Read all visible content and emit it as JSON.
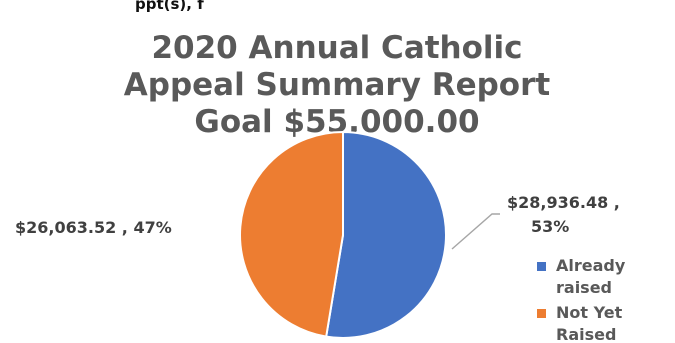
{
  "top_fragment": "ppt(s), f",
  "chart_data": {
    "type": "pie",
    "title_lines": [
      "2020 Annual Catholic",
      "Appeal  Summary Report",
      "Goal $55,000.00"
    ],
    "slices": [
      {
        "name": "Already raised",
        "value": 28936.48,
        "percent": 53,
        "label_line1": "$28,936.48 ,",
        "label_line2": "53%",
        "legend_line1": "Already",
        "legend_line2": "raised",
        "color": "#4472C4"
      },
      {
        "name": "Not Yet Raised",
        "value": 26063.52,
        "percent": 47,
        "label_line1": "$26,063.52 , 47%",
        "legend_line1": "Not Yet",
        "legend_line2": "Raised",
        "color": "#ED7D31"
      }
    ],
    "legend_position": "right"
  }
}
